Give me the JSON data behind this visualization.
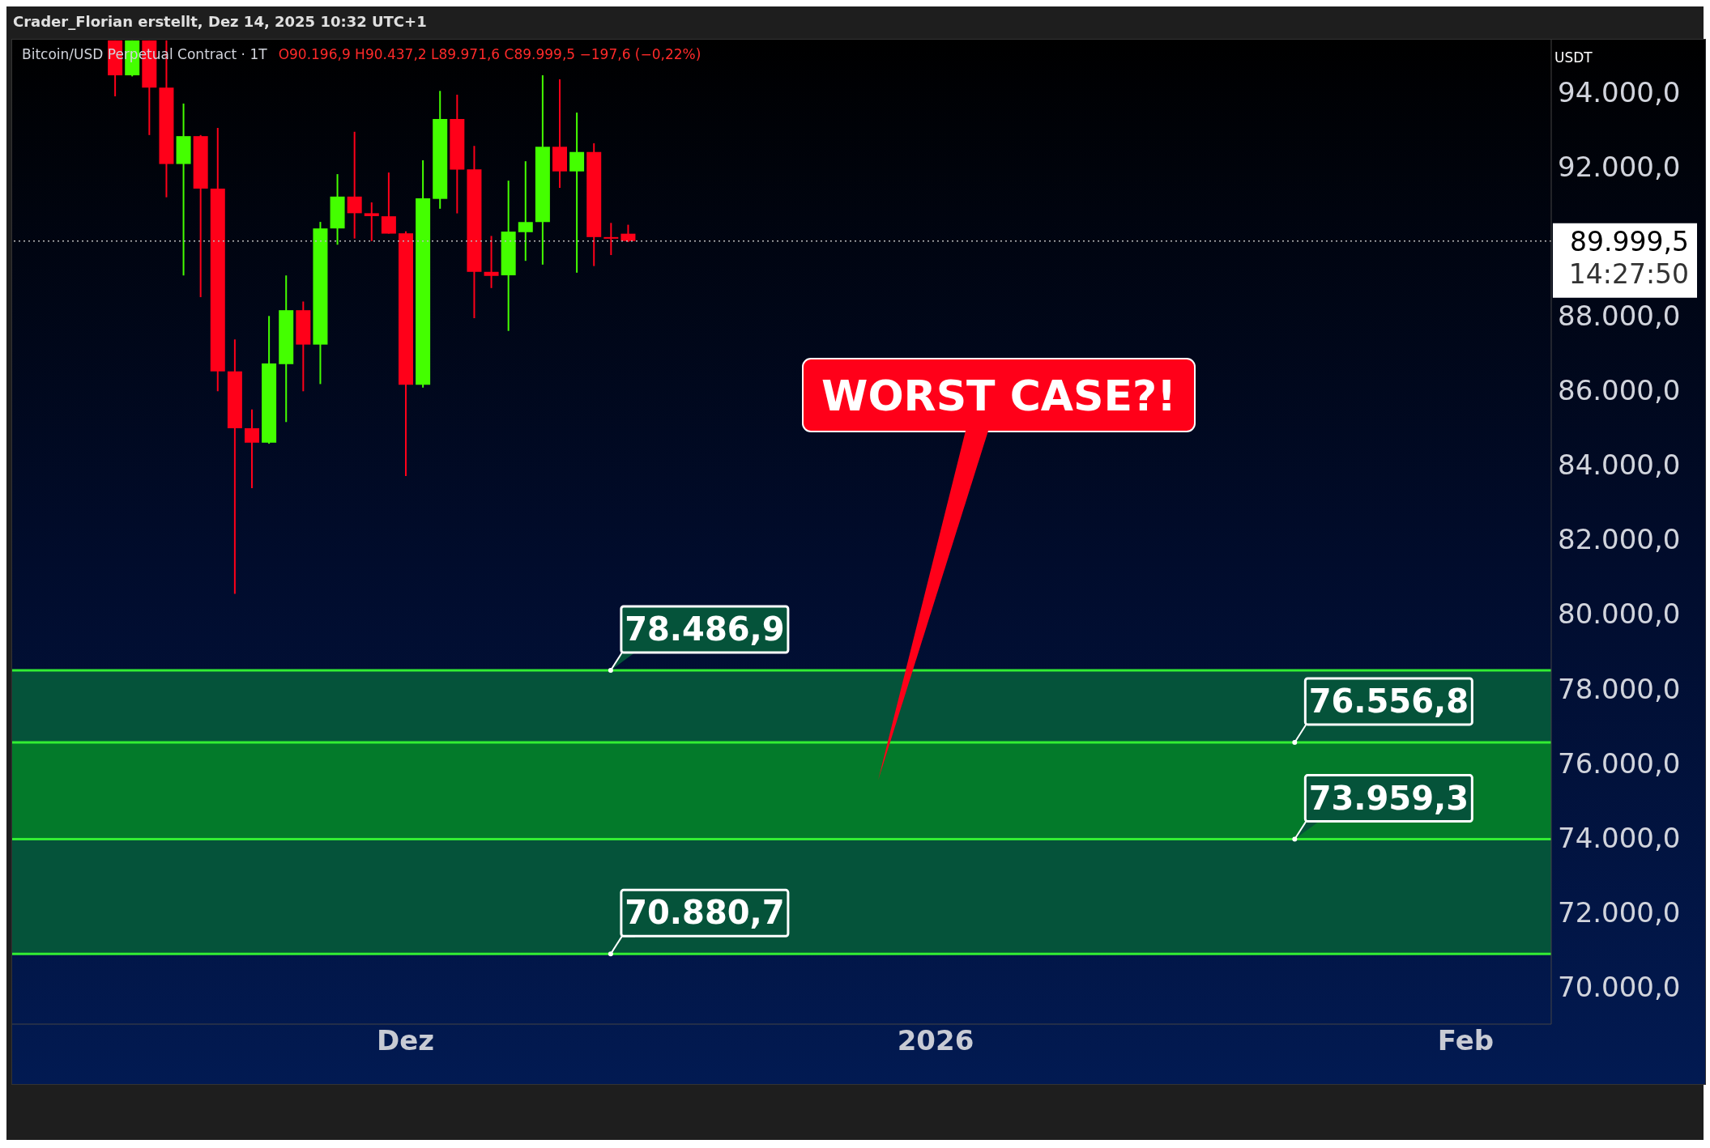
{
  "chart_data": {
    "type": "candlestick",
    "title": "Bitcoin/USD Perpetual Contract · 1T",
    "annotations": [
      "Crader_Florian erstellt, Dez 14, 2025 10:32 UTC+1",
      "O90.196,9 H90.437,2 L89.971,6 C89.999,5 −197,6 (−0,22%)",
      "USDT",
      "14:27:50",
      {
        "text": "78.486,9",
        "x": "2025-12-13",
        "y": 78486.9
      },
      {
        "text": "76.556,8",
        "x": "2026-01-22",
        "y": 76556.8
      },
      {
        "text": "73.959,3",
        "x": "2026-01-22",
        "y": 73959.3
      },
      {
        "text": "70.880,7",
        "x": "2025-12-13",
        "y": 70880.7
      },
      "WORST CASE?!"
    ],
    "x": [
      "2025-11-14",
      "2025-11-15",
      "2025-11-16",
      "2025-11-17",
      "2025-11-18",
      "2025-11-19",
      "2025-11-20",
      "2025-11-21",
      "2025-11-22",
      "2025-11-23",
      "2025-11-24",
      "2025-11-25",
      "2025-11-26",
      "2025-11-27",
      "2025-11-28",
      "2025-11-29",
      "2025-11-30",
      "2025-12-01",
      "2025-12-02",
      "2025-12-03",
      "2025-12-04",
      "2025-12-05",
      "2025-12-06",
      "2025-12-07",
      "2025-12-08",
      "2025-12-09",
      "2025-12-10",
      "2025-12-11",
      "2025-12-12",
      "2025-12-13",
      "2025-12-14"
    ],
    "ohlc": [
      [
        95380,
        95380,
        93881,
        94444
      ],
      [
        94444,
        95380,
        94415,
        95380
      ],
      [
        95380,
        95380,
        92842,
        94114
      ],
      [
        94114,
        95380,
        91173,
        92066
      ],
      [
        92066,
        93687,
        89077,
        92813
      ],
      [
        92813,
        92842,
        88495,
        91406
      ],
      [
        91406,
        93036,
        85971,
        86505
      ],
      [
        86505,
        87359,
        80537,
        84981
      ],
      [
        84981,
        85486,
        83370,
        84593
      ],
      [
        84593,
        87990,
        84564,
        86718
      ],
      [
        86699,
        89077,
        85146,
        88145
      ],
      [
        88145,
        88378,
        85971,
        87223
      ],
      [
        87223,
        90513,
        86165,
        90338
      ],
      [
        90338,
        91794,
        89902,
        91192
      ],
      [
        91192,
        92930,
        90067,
        90746
      ],
      [
        90746,
        91037,
        89999,
        90668
      ],
      [
        90664,
        91837,
        90199,
        90199
      ],
      [
        90207,
        90261,
        83700,
        86146
      ],
      [
        86146,
        92163,
        86068,
        91146
      ],
      [
        91130,
        94026,
        90866,
        93273
      ],
      [
        93273,
        93925,
        90742,
        91915
      ],
      [
        91922,
        92551,
        87932,
        89174
      ],
      [
        89174,
        90137,
        88739,
        89065
      ],
      [
        89081,
        91619,
        87590,
        90253
      ],
      [
        90238,
        92140,
        89469,
        90509
      ],
      [
        90509,
        94446,
        89368,
        92528
      ],
      [
        92528,
        94337,
        91425,
        91868
      ],
      [
        91868,
        93444,
        89151,
        92388
      ],
      [
        92388,
        92621,
        89329,
        90106
      ],
      [
        90106,
        90486,
        89624,
        90090
      ],
      [
        90196.9,
        90437.2,
        89971.6,
        89999.5
      ]
    ],
    "colors": [
      "#ff0019",
      "#44ff00",
      "#ff0019",
      "#ff0019",
      "#44ff00",
      "#ff0019",
      "#ff0019",
      "#ff0019",
      "#ff0019",
      "#44ff00",
      "#44ff00",
      "#ff0019",
      "#44ff00",
      "#44ff00",
      "#ff0019",
      "#ff0019",
      "#ff0019",
      "#ff0019",
      "#44ff00",
      "#44ff00",
      "#ff0019",
      "#ff0019",
      "#ff0019",
      "#44ff00",
      "#44ff00",
      "#44ff00",
      "#ff0019",
      "#44ff00",
      "#ff0019",
      "#ff0019",
      "#ff0019"
    ],
    "xlim": [
      "2025-11-08",
      "2026-02-06"
    ],
    "xticks": [
      {
        "value": "2025-12-01",
        "label": "Dez"
      },
      {
        "value": "2026-01-01",
        "label": "2026"
      },
      {
        "value": "2026-02-01",
        "label": "Feb"
      }
    ],
    "ylim": [
      69000,
      95400
    ],
    "yticks": [
      {
        "value": 70000,
        "label": "70.000,0"
      },
      {
        "value": 72000,
        "label": "72.000,0"
      },
      {
        "value": 74000,
        "label": "74.000,0"
      },
      {
        "value": 76000,
        "label": "76.000,0"
      },
      {
        "value": 78000,
        "label": "78.000,0"
      },
      {
        "value": 80000,
        "label": "80.000,0"
      },
      {
        "value": 82000,
        "label": "82.000,0"
      },
      {
        "value": 84000,
        "label": "84.000,0"
      },
      {
        "value": 86000,
        "label": "86.000,0"
      },
      {
        "value": 88000,
        "label": "88.000,0"
      },
      {
        "value": 92000,
        "label": "92.000,0"
      },
      {
        "value": 94000,
        "label": "94.000,0"
      }
    ],
    "bands": [
      {
        "axis": "y",
        "from": 70880.7,
        "to": 73959.3,
        "color": "#05533a"
      },
      {
        "axis": "y",
        "from": 73959.3,
        "to": 76556.8,
        "color": "#037a2a"
      },
      {
        "axis": "y",
        "from": 76556.8,
        "to": 78486.9,
        "color": "#05533a"
      }
    ],
    "ref_lines": [
      {
        "axis": "y",
        "value": 89999.5,
        "label": "89.999,5",
        "color": "#bbbbbb",
        "line_style": "dotted"
      },
      {
        "axis": "y",
        "value": 78486.9,
        "color": "#33ee33",
        "line_style": "solid"
      },
      {
        "axis": "y",
        "value": 76556.8,
        "color": "#33ee33",
        "line_style": "solid"
      },
      {
        "axis": "y",
        "value": 73959.3,
        "color": "#33ee33",
        "line_style": "solid"
      },
      {
        "axis": "y",
        "value": 70880.7,
        "color": "#33ee33",
        "line_style": "solid"
      }
    ]
  }
}
